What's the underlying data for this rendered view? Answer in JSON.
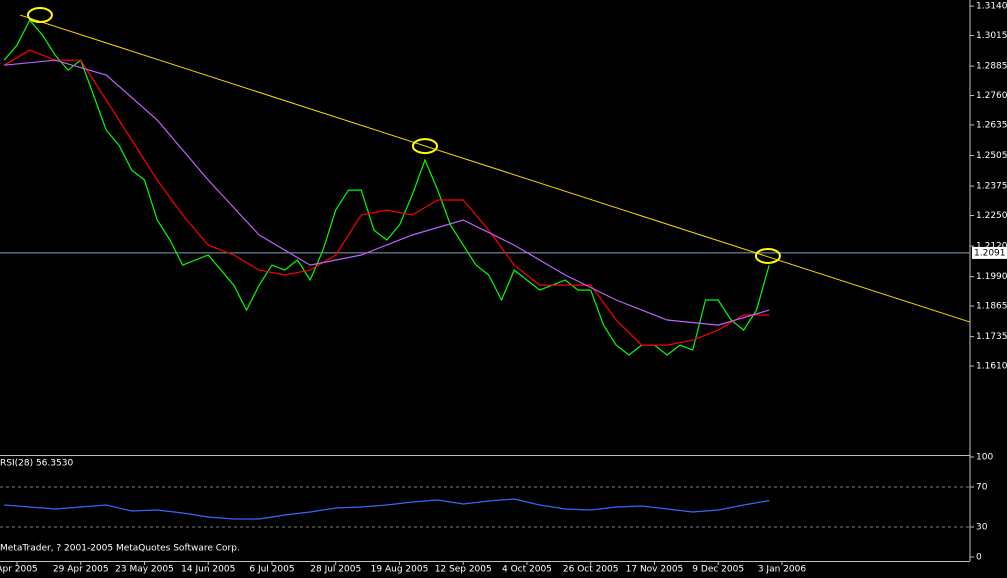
{
  "chart_data": [
    {
      "type": "line",
      "xlim": [
        -0.333,
        75.75
      ],
      "ylim": [
        1.1232,
        1.3166
      ],
      "yticks": [
        {
          "value": 1.314,
          "label": "1.3140"
        },
        1.3015,
        1.2885,
        {
          "value": 1.276,
          "label": "1.2760"
        },
        1.2635,
        1.2505,
        1.2375,
        {
          "value": 1.225,
          "label": "1.2250"
        },
        {
          "value": 1.212,
          "label": "1.2120"
        },
        {
          "value": 1.199,
          "label": "1.1990"
        },
        1.1865,
        1.1735,
        {
          "value": 1.161,
          "label": "1.1610"
        }
      ],
      "xticks": [
        {
          "value": 1,
          "label": "Apr 2005"
        },
        {
          "value": 6,
          "label": "29 Apr 2005"
        },
        {
          "value": 11,
          "label": "23 May 2005"
        },
        {
          "value": 16,
          "label": "14 Jun 2005"
        },
        {
          "value": 21,
          "label": "6 Jul 2005"
        },
        {
          "value": 26,
          "label": "28 Jul 2005"
        },
        {
          "value": 31,
          "label": "19 Aug 2005"
        },
        {
          "value": 36,
          "label": "12 Sep 2005"
        },
        {
          "value": 41,
          "label": "4 Oct 2005"
        },
        {
          "value": 46,
          "label": "26 Oct 2005"
        },
        {
          "value": 51,
          "label": "17 Nov 2005"
        },
        {
          "value": 56,
          "label": "9 Dec 2005"
        },
        {
          "value": 61,
          "label": "3 Jan 2006"
        }
      ],
      "series": [
        {
          "color": "#00ff00",
          "x": [
            0,
            1,
            2,
            3,
            4,
            5,
            6,
            7,
            8,
            9,
            10,
            11,
            12,
            13,
            14,
            15,
            16,
            17,
            18,
            19,
            20,
            21,
            22,
            23,
            24,
            25,
            26,
            27,
            28,
            29,
            30,
            31,
            32,
            33,
            34,
            35,
            36,
            37,
            38,
            39,
            40,
            41,
            42,
            43,
            44,
            45,
            46,
            47,
            48,
            49,
            50,
            51,
            52,
            53,
            54,
            55,
            56,
            57,
            58,
            59,
            60
          ],
          "values": [
            1.291,
            1.2974,
            1.308,
            1.3017,
            1.2932,
            1.2868,
            1.291,
            1.2762,
            1.2613,
            1.2549,
            1.2443,
            1.2401,
            1.2231,
            1.2146,
            1.2039,
            1.2061,
            1.2082,
            1.2018,
            1.1954,
            1.1848,
            1.1954,
            1.2039,
            1.2018,
            1.2061,
            1.1976,
            1.2103,
            1.2273,
            1.2358,
            1.2358,
            1.2188,
            1.2146,
            1.2209,
            1.2337,
            1.2486,
            1.2358,
            1.2209,
            1.2124,
            1.2039,
            1.1997,
            1.1891,
            1.2018,
            1.1976,
            1.1933,
            1.1954,
            1.1976,
            1.1933,
            1.1933,
            1.1784,
            1.1699,
            1.1657,
            1.1699,
            1.1699,
            1.1657,
            1.1699,
            1.1678,
            1.1891,
            1.1891,
            1.1806,
            1.1763,
            1.1848,
            1.2039
          ]
        },
        {
          "color": "#ff0000",
          "x": [
            0,
            2,
            4,
            6,
            8,
            10,
            12,
            14,
            16,
            18,
            20,
            22,
            24,
            26,
            28,
            30,
            32,
            34,
            36,
            38,
            40,
            42,
            44,
            46,
            48,
            50,
            52,
            54,
            56,
            58,
            60
          ],
          "values": [
            1.2889,
            1.2953,
            1.291,
            1.291,
            1.2741,
            1.2571,
            1.2401,
            1.2252,
            1.2124,
            1.2082,
            1.2018,
            1.1997,
            1.2018,
            1.2082,
            1.2252,
            1.2273,
            1.2252,
            1.2316,
            1.2316,
            1.2188,
            1.2039,
            1.1954,
            1.1954,
            1.1954,
            1.1806,
            1.1699,
            1.1699,
            1.172,
            1.1763,
            1.1827,
            1.1827
          ]
        },
        {
          "color": "#c060ff",
          "x": [
            0,
            4,
            8,
            12,
            16,
            20,
            24,
            28,
            32,
            36,
            40,
            44,
            48,
            52,
            56,
            60
          ],
          "values": [
            1.2889,
            1.291,
            1.2847,
            1.2656,
            1.2401,
            1.2167,
            1.2039,
            1.2082,
            1.2167,
            1.2231,
            1.2124,
            1.1997,
            1.1891,
            1.1806,
            1.1784,
            1.1848
          ]
        }
      ],
      "trendline": {
        "color": "#ffd700",
        "x": [
          1.24,
          75.75
        ],
        "values": [
          1.3102,
          1.1797
        ]
      },
      "highlights": {
        "color": "#ffff00",
        "x": [
          2.8,
          33.0,
          59.9
        ],
        "values": [
          1.3102,
          1.2545,
          1.2078
        ]
      },
      "current_price": {
        "value": 1.2091,
        "label": "1.2091"
      }
    },
    {
      "type": "line",
      "title": "RSI(28) 56.3530",
      "xlim": [
        -0.333,
        75.75
      ],
      "ylim": [
        -3,
        100
      ],
      "yticks": [
        100,
        70,
        30,
        0
      ],
      "series": [
        {
          "color": "#3366ff",
          "x": [
            0,
            2,
            4,
            6,
            8,
            10,
            12,
            14,
            16,
            18,
            20,
            22,
            24,
            26,
            28,
            30,
            32,
            34,
            36,
            38,
            40,
            42,
            44,
            46,
            48,
            50,
            52,
            54,
            56,
            58,
            60
          ],
          "values": [
            52,
            50,
            48,
            50,
            52,
            46,
            47,
            44,
            40,
            38,
            38,
            42,
            45,
            49,
            50,
            52,
            55,
            57,
            53,
            56,
            58,
            52,
            48,
            47,
            50,
            51,
            48,
            45,
            47,
            52,
            56.353
          ]
        }
      ]
    }
  ],
  "footer": "MetaTrader, ? 2001-2005 MetaQuotes Software Corp."
}
